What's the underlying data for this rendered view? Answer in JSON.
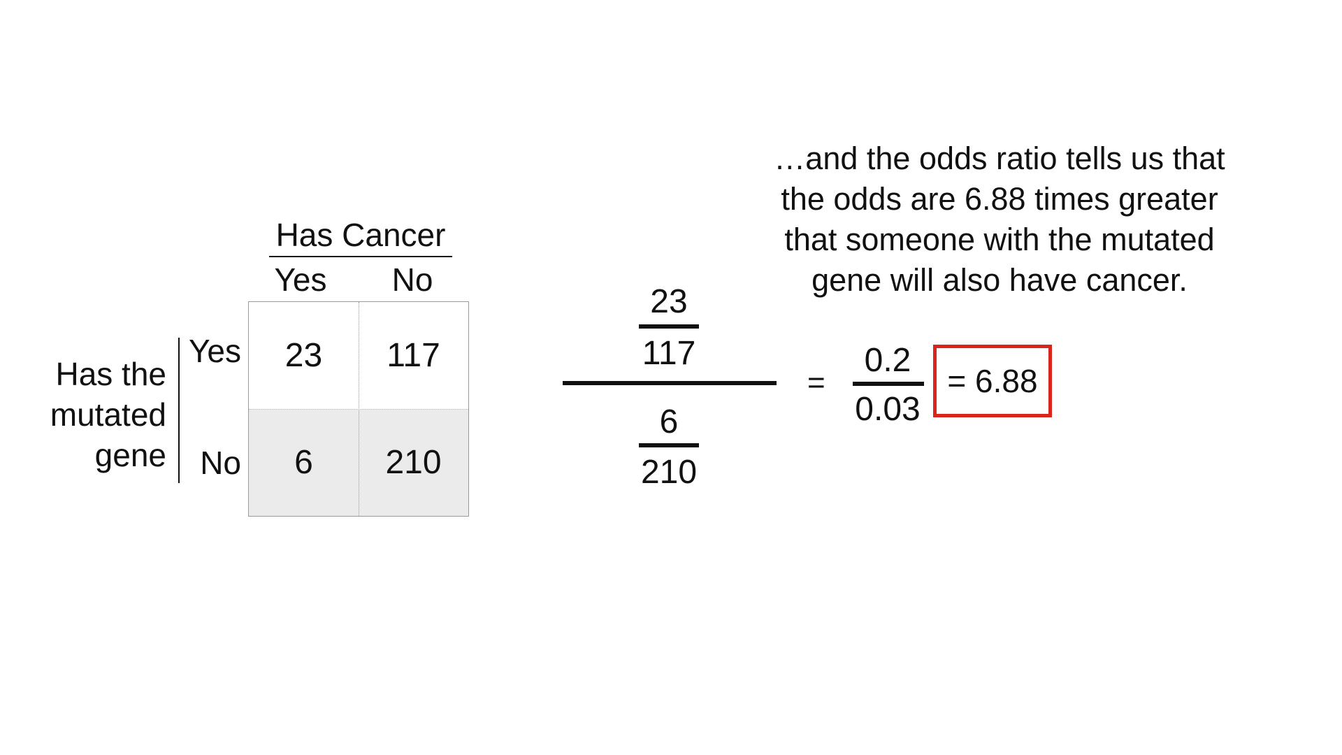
{
  "caption": {
    "lines": [
      "…and the odds ratio tells us that",
      "the odds are 6.88 times greater",
      "that someone with the mutated",
      "gene will also have cancer."
    ]
  },
  "table": {
    "column_header": "Has Cancer",
    "column_labels": [
      "Yes",
      "No"
    ],
    "row_header_lines": [
      "Has the",
      "mutated",
      "gene"
    ],
    "row_labels": [
      "Yes",
      "No"
    ],
    "cells": [
      [
        "23",
        "117"
      ],
      [
        "6",
        "210"
      ]
    ]
  },
  "formula": {
    "top_numerator": "23",
    "top_denominator": "117",
    "bottom_numerator": "6",
    "bottom_denominator": "210",
    "equals": "=",
    "simplified_numerator": "0.2",
    "simplified_denominator": "0.03",
    "result": "= 6.88"
  },
  "colors": {
    "highlight_box": "#d9261c",
    "table_bottom_row_fill": "#ebebeb"
  }
}
